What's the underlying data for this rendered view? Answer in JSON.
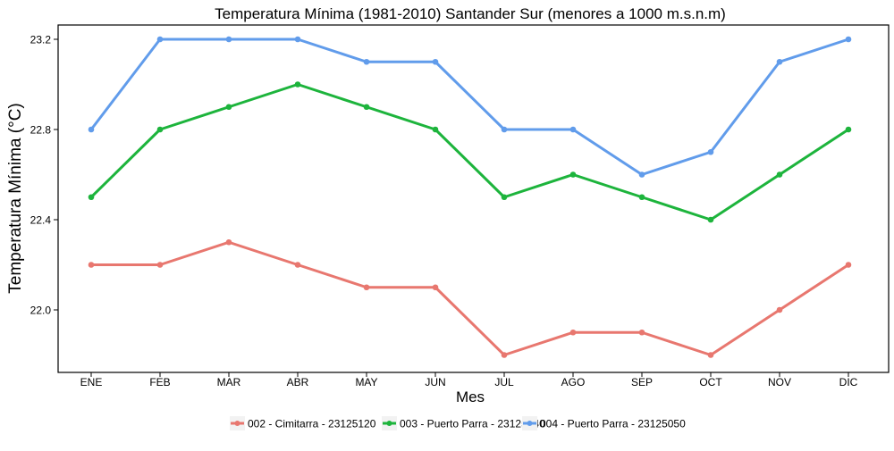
{
  "chart_data": {
    "type": "line",
    "title": "Temperatura Mínima (1981-2010) Santander Sur (menores a 1000 m.s.n.m)",
    "xlabel": "Mes",
    "ylabel": "Temperatura Mínima (°C)",
    "categories": [
      "ENE",
      "FEB",
      "MAR",
      "ABR",
      "MAY",
      "JUN",
      "JUL",
      "AGO",
      "SEP",
      "OCT",
      "NOV",
      "DIC"
    ],
    "ylim": [
      21.8,
      23.25
    ],
    "yticks": [
      22.0,
      22.4,
      22.8,
      23.2
    ],
    "ytick_labels": [
      "22.0",
      "22.4",
      "22.8",
      "23.2"
    ],
    "grid": false,
    "legend_position": "bottom",
    "series": [
      {
        "name": "002 - Cimitarra - 23125120",
        "color": "#E8776F",
        "values": [
          22.2,
          22.2,
          22.3,
          22.2,
          22.1,
          22.1,
          21.8,
          21.9,
          21.9,
          21.8,
          22.0,
          22.2
        ]
      },
      {
        "name": "003 - Puerto Parra - 23125040",
        "color": "#1DB43C",
        "values": [
          22.5,
          22.8,
          22.9,
          23.0,
          22.9,
          22.8,
          22.5,
          22.6,
          22.5,
          22.4,
          22.6,
          22.8
        ]
      },
      {
        "name": "004 - Puerto Parra - 23125050",
        "color": "#619CEB",
        "values": [
          22.8,
          23.2,
          23.2,
          23.2,
          23.1,
          23.1,
          22.8,
          22.8,
          22.6,
          22.7,
          23.1,
          23.2
        ]
      }
    ]
  }
}
